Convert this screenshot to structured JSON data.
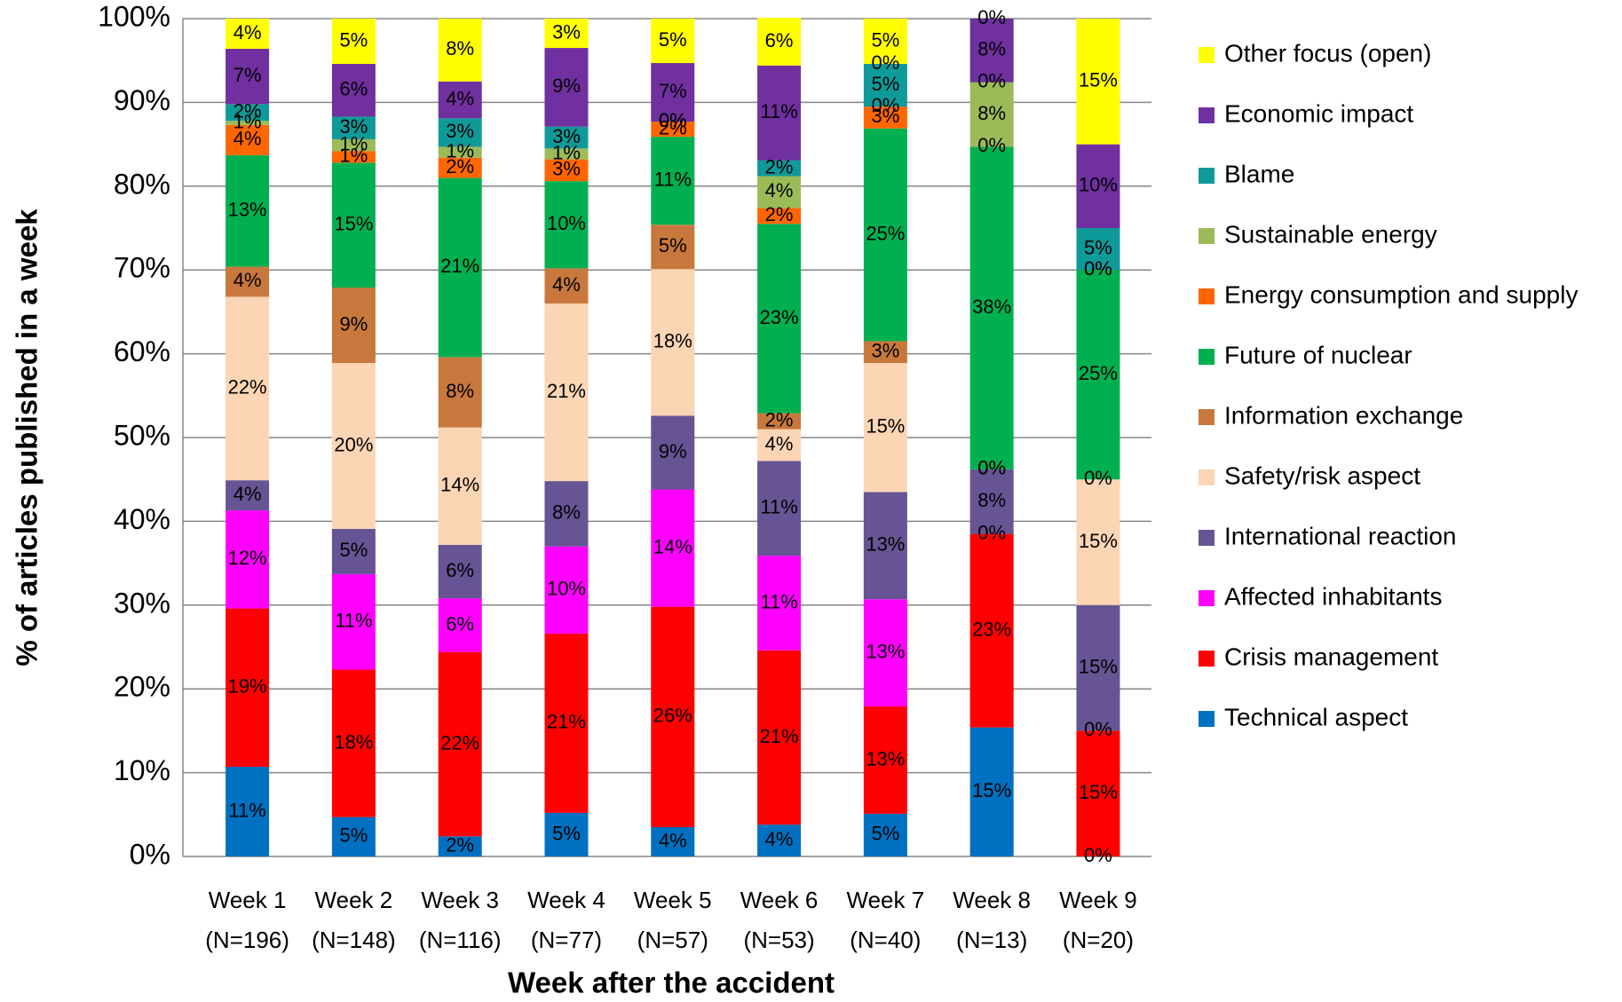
{
  "chart_data": {
    "type": "stacked_bar",
    "x_label": "Week after the accident",
    "y_label": "% of articles published in a week",
    "categories": [
      [
        "Week 1",
        "(N=196)"
      ],
      [
        "Week 2",
        "(N=148)"
      ],
      [
        "Week 3",
        "(N=116)"
      ],
      [
        "Week 4",
        "(N=77)"
      ],
      [
        "Week 5",
        "(N=57)"
      ],
      [
        "Week 6",
        "(N=53)"
      ],
      [
        "Week 7",
        "(N=40)"
      ],
      [
        "Week 8",
        "(N=13)"
      ],
      [
        "Week 9",
        "(N=20)"
      ]
    ],
    "ylim": [
      0,
      100
    ],
    "yticks": [
      {
        "value": 0,
        "label": "0%"
      },
      {
        "value": 10,
        "label": "10%"
      },
      {
        "value": 20,
        "label": "20%"
      },
      {
        "value": 30,
        "label": "30%"
      },
      {
        "value": 40,
        "label": "40%"
      },
      {
        "value": 50,
        "label": "50%"
      },
      {
        "value": 60,
        "label": "60%"
      },
      {
        "value": 70,
        "label": "70%"
      },
      {
        "value": 80,
        "label": "80%"
      },
      {
        "value": 90,
        "label": "90%"
      },
      {
        "value": 100,
        "label": "100%"
      }
    ],
    "grid": true,
    "legend": "right",
    "series": [
      {
        "name": "Technical aspect",
        "color": "#0070c0",
        "values": [
          10.7,
          4.7,
          2.4,
          5.2,
          3.5,
          3.8,
          5.1,
          15.4,
          0
        ],
        "value_labels": [
          "11%",
          "5%",
          "2%",
          "5%",
          "4%",
          "4%",
          "5%",
          "15%",
          "0%"
        ]
      },
      {
        "name": "Crisis management",
        "color": "#ff0000",
        "values": [
          18.9,
          17.6,
          22.0,
          21.4,
          26.3,
          20.8,
          12.8,
          23.1,
          15
        ],
        "value_labels": [
          "19%",
          "18%",
          "22%",
          "21%",
          "26%",
          "21%",
          "13%",
          "23%",
          "15%"
        ]
      },
      {
        "name": "Affected inhabitants",
        "color": "#ff00ff",
        "values": [
          11.7,
          11.4,
          6.4,
          10.4,
          14.0,
          11.3,
          12.8,
          0,
          0
        ],
        "value_labels": [
          "12%",
          "11%",
          "6%",
          "10%",
          "14%",
          "11%",
          "13%",
          "0%",
          "0%"
        ]
      },
      {
        "name": "International reaction",
        "color": "#665494",
        "values": [
          3.6,
          5.4,
          6.4,
          7.8,
          8.8,
          11.3,
          12.8,
          7.7,
          15
        ],
        "value_labels": [
          "4%",
          "5%",
          "6%",
          "8%",
          "9%",
          "11%",
          "13%",
          "8%",
          "15%"
        ]
      },
      {
        "name": "Safety/risk aspect",
        "color": "#fcd5b5",
        "values": [
          21.9,
          19.8,
          14.0,
          21.2,
          17.5,
          3.8,
          15.4,
          0,
          15
        ],
        "value_labels": [
          "22%",
          "20%",
          "14%",
          "21%",
          "18%",
          "4%",
          "15%",
          "0%",
          "15%"
        ]
      },
      {
        "name": "Information exchange",
        "color": "#c8783c",
        "values": [
          3.6,
          9.0,
          8.4,
          4.2,
          5.3,
          1.9,
          2.6,
          0,
          0
        ],
        "value_labels": [
          "4%",
          "9%",
          "8%",
          "4%",
          "5%",
          "2%",
          "3%",
          "0%",
          "0%"
        ]
      },
      {
        "name": "Future of nuclear",
        "color": "#00b050",
        "values": [
          13.3,
          14.9,
          21.4,
          10.4,
          10.5,
          22.6,
          25.4,
          38.5,
          25
        ],
        "value_labels": [
          "13%",
          "15%",
          "21%",
          "10%",
          "11%",
          "23%",
          "25%",
          "38%",
          "25%"
        ]
      },
      {
        "name": "Energy consumption and supply",
        "color": "#ff6600",
        "values": [
          3.6,
          1.4,
          2.4,
          2.6,
          1.8,
          1.9,
          2.6,
          0,
          0
        ],
        "value_labels": [
          "4%",
          "1%",
          "2%",
          "3%",
          "2%",
          "2%",
          "3%",
          "0%",
          "0%"
        ]
      },
      {
        "name": "Sustainable energy",
        "color": "#9bbb59",
        "values": [
          0.5,
          1.4,
          1.3,
          1.3,
          0,
          3.8,
          0,
          7.7,
          0
        ],
        "value_labels": [
          "1%",
          "1%",
          "1%",
          "1%",
          "0%",
          "4%",
          "0%",
          "8%",
          "0%"
        ]
      },
      {
        "name": "Blame",
        "color": "#0f9a9a",
        "values": [
          2.0,
          2.7,
          3.4,
          2.6,
          0,
          1.9,
          5.1,
          0,
          5
        ],
        "value_labels": [
          "2%",
          "3%",
          "3%",
          "3%",
          "0%",
          "2%",
          "5%",
          "0%",
          "5%"
        ]
      },
      {
        "name": "Economic impact",
        "color": "#7030a0",
        "values": [
          6.6,
          6.3,
          4.4,
          9.4,
          7.0,
          11.3,
          0,
          7.6,
          10
        ],
        "value_labels": [
          "7%",
          "6%",
          "4%",
          "9%",
          "7%",
          "11%",
          "0%",
          "8%",
          "10%"
        ]
      },
      {
        "name": "Other focus (open)",
        "color": "#ffff00",
        "values": [
          3.6,
          5.4,
          7.5,
          3.5,
          5.3,
          5.7,
          5.4,
          0,
          15
        ],
        "value_labels": [
          "4%",
          "5%",
          "8%",
          "3%",
          "5%",
          "6%",
          "5%",
          "0%",
          "15%"
        ]
      }
    ]
  }
}
